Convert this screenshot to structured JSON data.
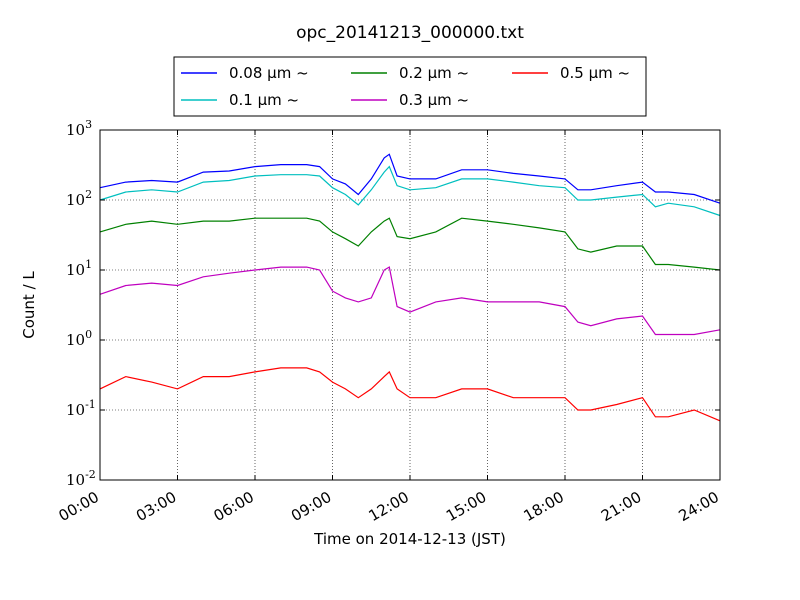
{
  "chart_data": {
    "type": "line",
    "title": "opc_20141213_000000.txt",
    "xlabel": "Time on 2014-12-13 (JST)",
    "ylabel": "Count / L",
    "x_unit": "hours",
    "xlim": [
      0,
      24
    ],
    "ylim": [
      0.01,
      1000
    ],
    "yscale": "log",
    "grid": true,
    "legend_position": "top",
    "x_ticks": [
      {
        "value": 0,
        "label": "00:00"
      },
      {
        "value": 3,
        "label": "03:00"
      },
      {
        "value": 6,
        "label": "06:00"
      },
      {
        "value": 9,
        "label": "09:00"
      },
      {
        "value": 12,
        "label": "12:00"
      },
      {
        "value": 15,
        "label": "15:00"
      },
      {
        "value": 18,
        "label": "18:00"
      },
      {
        "value": 21,
        "label": "21:00"
      },
      {
        "value": 24,
        "label": "24:00"
      }
    ],
    "y_ticks": [
      {
        "value": 1000,
        "base": "10",
        "exp": "3"
      },
      {
        "value": 100,
        "base": "10",
        "exp": "2"
      },
      {
        "value": 10,
        "base": "10",
        "exp": "1"
      },
      {
        "value": 1,
        "base": "10",
        "exp": "0"
      },
      {
        "value": 0.1,
        "base": "10",
        "exp": "-1"
      },
      {
        "value": 0.01,
        "base": "10",
        "exp": "-2"
      }
    ],
    "x": [
      0.0,
      1.0,
      2.0,
      3.0,
      4.0,
      5.0,
      6.0,
      7.0,
      8.0,
      8.5,
      9.0,
      9.5,
      10.0,
      10.5,
      11.0,
      11.2,
      11.5,
      12.0,
      13.0,
      14.0,
      15.0,
      16.0,
      17.0,
      18.0,
      18.5,
      19.0,
      20.0,
      21.0,
      21.5,
      22.0,
      23.0,
      24.0
    ],
    "series": [
      {
        "name": "0.08 μm ~",
        "color": "#0000ff",
        "values": [
          150,
          180,
          190,
          180,
          250,
          260,
          300,
          320,
          320,
          300,
          200,
          170,
          120,
          200,
          400,
          450,
          220,
          200,
          200,
          270,
          270,
          240,
          220,
          200,
          140,
          140,
          160,
          180,
          130,
          130,
          120,
          90
        ]
      },
      {
        "name": "0.1 μm ~",
        "color": "#00bfbf",
        "values": [
          100,
          130,
          140,
          130,
          180,
          190,
          220,
          230,
          230,
          220,
          150,
          120,
          85,
          140,
          250,
          300,
          160,
          140,
          150,
          200,
          200,
          180,
          160,
          150,
          100,
          100,
          110,
          120,
          80,
          90,
          80,
          60
        ]
      },
      {
        "name": "0.2 μm ~",
        "color": "#008000",
        "values": [
          35,
          45,
          50,
          45,
          50,
          50,
          55,
          55,
          55,
          50,
          35,
          28,
          22,
          35,
          50,
          55,
          30,
          28,
          35,
          55,
          50,
          45,
          40,
          35,
          20,
          18,
          22,
          22,
          12,
          12,
          11,
          10
        ]
      },
      {
        "name": "0.3 μm ~",
        "color": "#bf00bf",
        "values": [
          4.5,
          6,
          6.5,
          6,
          8,
          9,
          10,
          11,
          11,
          10,
          5,
          4,
          3.5,
          4,
          10,
          11,
          3,
          2.5,
          3.5,
          4,
          3.5,
          3.5,
          3.5,
          3,
          1.8,
          1.6,
          2,
          2.2,
          1.2,
          1.2,
          1.2,
          1.4
        ]
      },
      {
        "name": "0.5 μm ~",
        "color": "#ff0000",
        "values": [
          0.2,
          0.3,
          0.25,
          0.2,
          0.3,
          0.3,
          0.35,
          0.4,
          0.4,
          0.35,
          0.25,
          0.2,
          0.15,
          0.2,
          0.3,
          0.35,
          0.2,
          0.15,
          0.15,
          0.2,
          0.2,
          0.15,
          0.15,
          0.15,
          0.1,
          0.1,
          0.12,
          0.15,
          0.08,
          0.08,
          0.1,
          0.07
        ]
      }
    ]
  }
}
